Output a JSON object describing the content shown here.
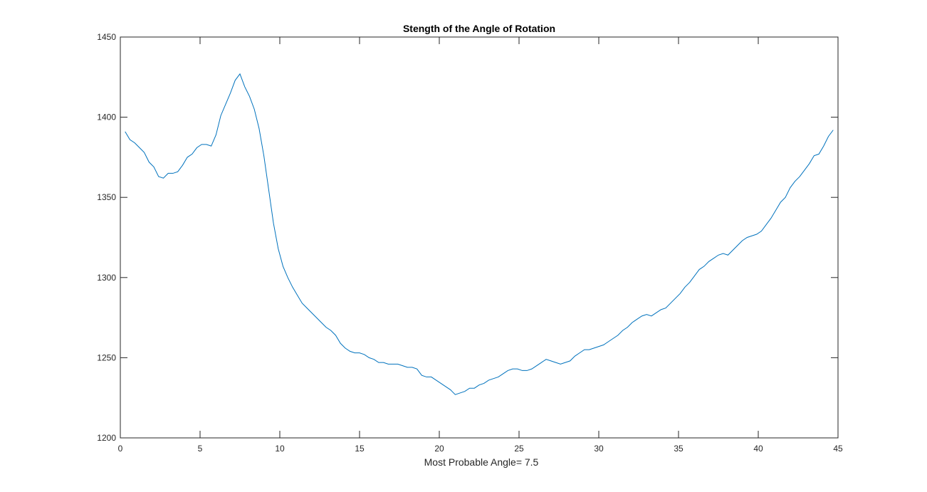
{
  "chart_data": {
    "type": "line",
    "title": "Stength of the Angle of Rotation",
    "xlabel": "Most Probable Angle= 7.5",
    "ylabel": "",
    "xlim": [
      0,
      45
    ],
    "ylim": [
      1200,
      1450
    ],
    "xticks": [
      0,
      5,
      10,
      15,
      20,
      25,
      30,
      35,
      40,
      45
    ],
    "yticks": [
      1200,
      1250,
      1300,
      1350,
      1400,
      1450
    ],
    "grid": false,
    "line_color": "#0072BD",
    "axis_color": "#262626",
    "series": [
      {
        "x": [
          0.3,
          0.6,
          0.9,
          1.2,
          1.5,
          1.8,
          2.1,
          2.4,
          2.7,
          3.0,
          3.3,
          3.6,
          3.9,
          4.2,
          4.5,
          4.8,
          5.1,
          5.4,
          5.7,
          6.0,
          6.3,
          6.6,
          6.9,
          7.2,
          7.5,
          7.8,
          8.1,
          8.4,
          8.7,
          9.0,
          9.3,
          9.6,
          9.9,
          10.2,
          10.5,
          10.8,
          11.1,
          11.4,
          11.7,
          12.0,
          12.3,
          12.6,
          12.9,
          13.2,
          13.5,
          13.8,
          14.1,
          14.4,
          14.7,
          15.0,
          15.3,
          15.6,
          15.9,
          16.2,
          16.5,
          16.8,
          17.1,
          17.4,
          17.7,
          18.0,
          18.3,
          18.6,
          18.9,
          19.2,
          19.5,
          19.8,
          20.1,
          20.4,
          20.7,
          21.0,
          21.3,
          21.6,
          21.9,
          22.2,
          22.5,
          22.8,
          23.1,
          23.4,
          23.7,
          24.0,
          24.3,
          24.6,
          24.9,
          25.2,
          25.5,
          25.8,
          26.1,
          26.4,
          26.7,
          27.0,
          27.3,
          27.6,
          27.9,
          28.2,
          28.5,
          28.8,
          29.1,
          29.4,
          29.7,
          30.0,
          30.3,
          30.6,
          30.9,
          31.2,
          31.5,
          31.8,
          32.1,
          32.4,
          32.7,
          33.0,
          33.3,
          33.6,
          33.9,
          34.2,
          34.5,
          34.8,
          35.1,
          35.4,
          35.7,
          36.0,
          36.3,
          36.6,
          36.9,
          37.2,
          37.5,
          37.8,
          38.1,
          38.4,
          38.7,
          39.0,
          39.3,
          39.6,
          39.9,
          40.2,
          40.5,
          40.8,
          41.1,
          41.4,
          41.7,
          42.0,
          42.3,
          42.6,
          42.9,
          43.2,
          43.5,
          43.8,
          44.1,
          44.4,
          44.7
        ],
        "values": [
          1391,
          1386,
          1384,
          1381,
          1378,
          1372,
          1369,
          1363,
          1362,
          1365,
          1365,
          1366,
          1370,
          1375,
          1377,
          1381,
          1383,
          1383,
          1382,
          1389,
          1401,
          1408,
          1415,
          1423,
          1427,
          1419,
          1413,
          1405,
          1393,
          1376,
          1355,
          1334,
          1318,
          1307,
          1300,
          1294,
          1289,
          1284,
          1281,
          1278,
          1275,
          1272,
          1269,
          1267,
          1264,
          1259,
          1256,
          1254,
          1253,
          1253,
          1252,
          1250,
          1249,
          1247,
          1247,
          1246,
          1246,
          1246,
          1245,
          1244,
          1244,
          1243,
          1239,
          1238,
          1238,
          1236,
          1234,
          1232,
          1230,
          1227,
          1228,
          1229,
          1231,
          1231,
          1233,
          1234,
          1236,
          1237,
          1238,
          1240,
          1242,
          1243,
          1243,
          1242,
          1242,
          1243,
          1245,
          1247,
          1249,
          1248,
          1247,
          1246,
          1247,
          1248,
          1251,
          1253,
          1255,
          1255,
          1256,
          1257,
          1258,
          1260,
          1262,
          1264,
          1267,
          1269,
          1272,
          1274,
          1276,
          1277,
          1276,
          1278,
          1280,
          1281,
          1284,
          1287,
          1290,
          1294,
          1297,
          1301,
          1305,
          1307,
          1310,
          1312,
          1314,
          1315,
          1314,
          1317,
          1320,
          1323,
          1325,
          1326,
          1327,
          1329,
          1333,
          1337,
          1342,
          1347,
          1350,
          1356,
          1360,
          1363,
          1367,
          1371,
          1376,
          1377,
          1382,
          1388,
          1392
        ]
      }
    ]
  }
}
